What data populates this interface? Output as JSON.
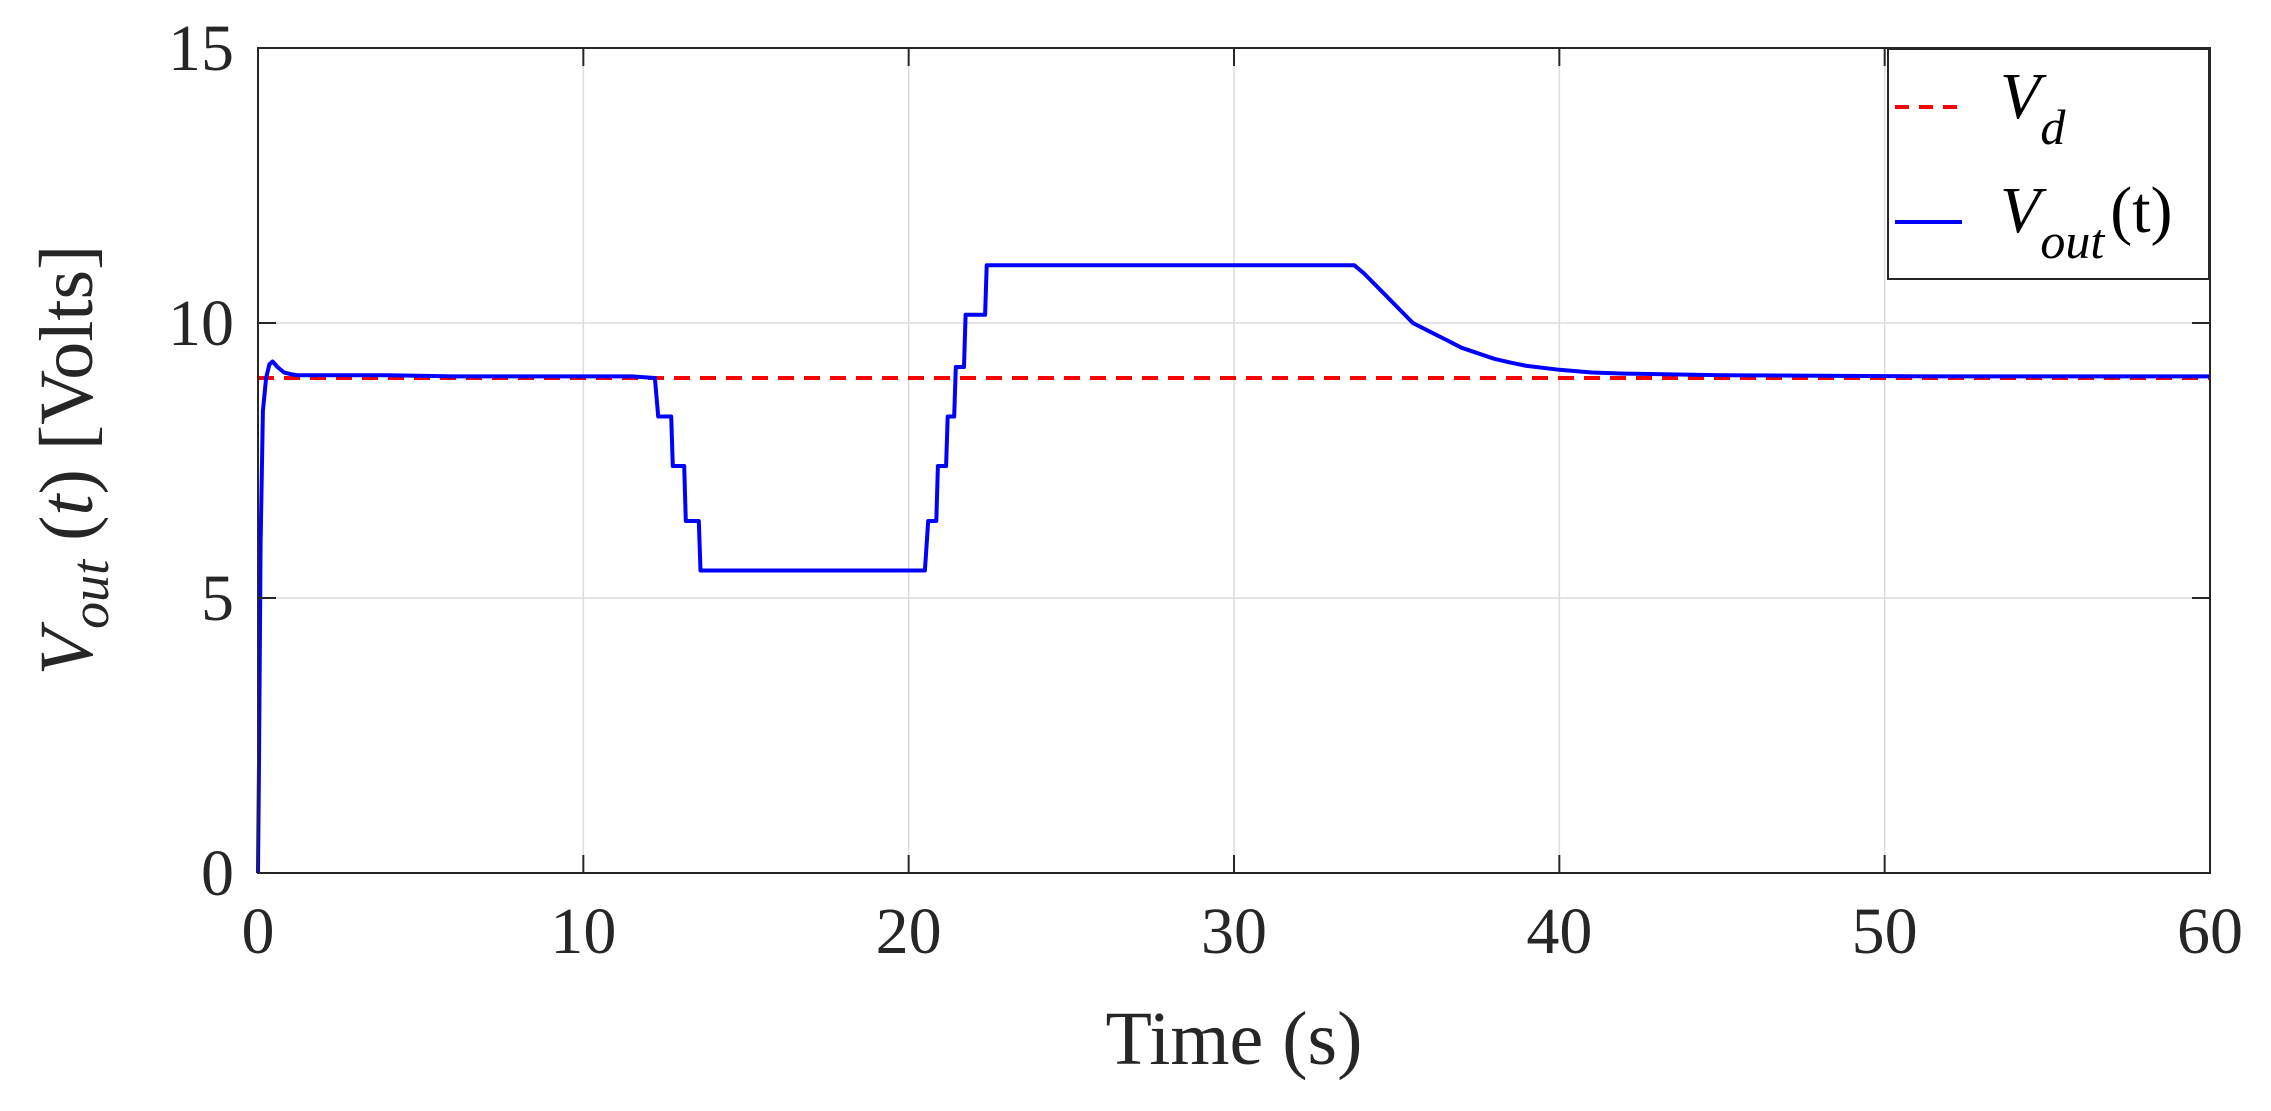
{
  "chart_data": {
    "type": "line",
    "xlabel": "Time (s)",
    "ylabel": {
      "base": "V",
      "sub": "out",
      "rest": " (",
      "italic_arg": "t",
      "close": ") [Volts]"
    },
    "xlim": [
      0,
      60
    ],
    "ylim": [
      0,
      15
    ],
    "xticks": [
      0,
      10,
      20,
      30,
      40,
      50,
      60
    ],
    "yticks": [
      0,
      5,
      10,
      15
    ],
    "xtick_labels": [
      "0",
      "10",
      "20",
      "30",
      "40",
      "50",
      "60"
    ],
    "ytick_labels": [
      "0",
      "5",
      "10",
      "15"
    ],
    "grid": true,
    "legend_position": "top-right",
    "series": [
      {
        "name": "V_d",
        "legend_base": "V",
        "legend_sub": "d",
        "legend_suffix": "",
        "color": "#ff0000",
        "style": "dashed",
        "x": [
          0,
          60
        ],
        "y": [
          9,
          9
        ]
      },
      {
        "name": "V_out(t)",
        "legend_base": "V",
        "legend_sub": "out",
        "legend_suffix": "(t)",
        "color": "#0000ff",
        "style": "solid",
        "x": [
          0,
          0.03,
          0.08,
          0.15,
          0.25,
          0.35,
          0.45,
          0.6,
          0.8,
          1.0,
          1.2,
          2.0,
          3.0,
          4.0,
          6.0,
          8.0,
          10.0,
          11.5,
          12.2,
          12.3,
          12.7,
          12.75,
          13.1,
          13.15,
          13.55,
          13.6,
          20.5,
          20.6,
          20.85,
          20.9,
          21.15,
          21.2,
          21.4,
          21.45,
          21.7,
          21.75,
          21.95,
          22.0,
          22.35,
          22.4,
          23.0,
          26.0,
          30.0,
          33.7,
          34.0,
          34.5,
          35.0,
          35.5,
          36.0,
          36.5,
          37.0,
          37.5,
          38.0,
          38.5,
          39.0,
          40.0,
          41.0,
          42.0,
          43.0,
          45.0,
          48.0,
          52.0,
          56.0,
          60.0
        ],
        "y": [
          0,
          2.0,
          6.0,
          8.4,
          9.0,
          9.25,
          9.3,
          9.2,
          9.1,
          9.07,
          9.05,
          9.05,
          9.05,
          9.05,
          9.03,
          9.03,
          9.03,
          9.03,
          9.0,
          8.3,
          8.3,
          7.4,
          7.4,
          6.4,
          6.4,
          5.5,
          5.5,
          6.4,
          6.4,
          7.4,
          7.4,
          8.3,
          8.3,
          9.2,
          9.2,
          10.15,
          10.15,
          10.15,
          10.15,
          11.05,
          11.05,
          11.05,
          11.05,
          11.05,
          10.9,
          10.6,
          10.3,
          10.0,
          9.85,
          9.7,
          9.55,
          9.45,
          9.35,
          9.28,
          9.22,
          9.15,
          9.1,
          9.08,
          9.07,
          9.05,
          9.04,
          9.03,
          9.03,
          9.03
        ]
      }
    ]
  }
}
